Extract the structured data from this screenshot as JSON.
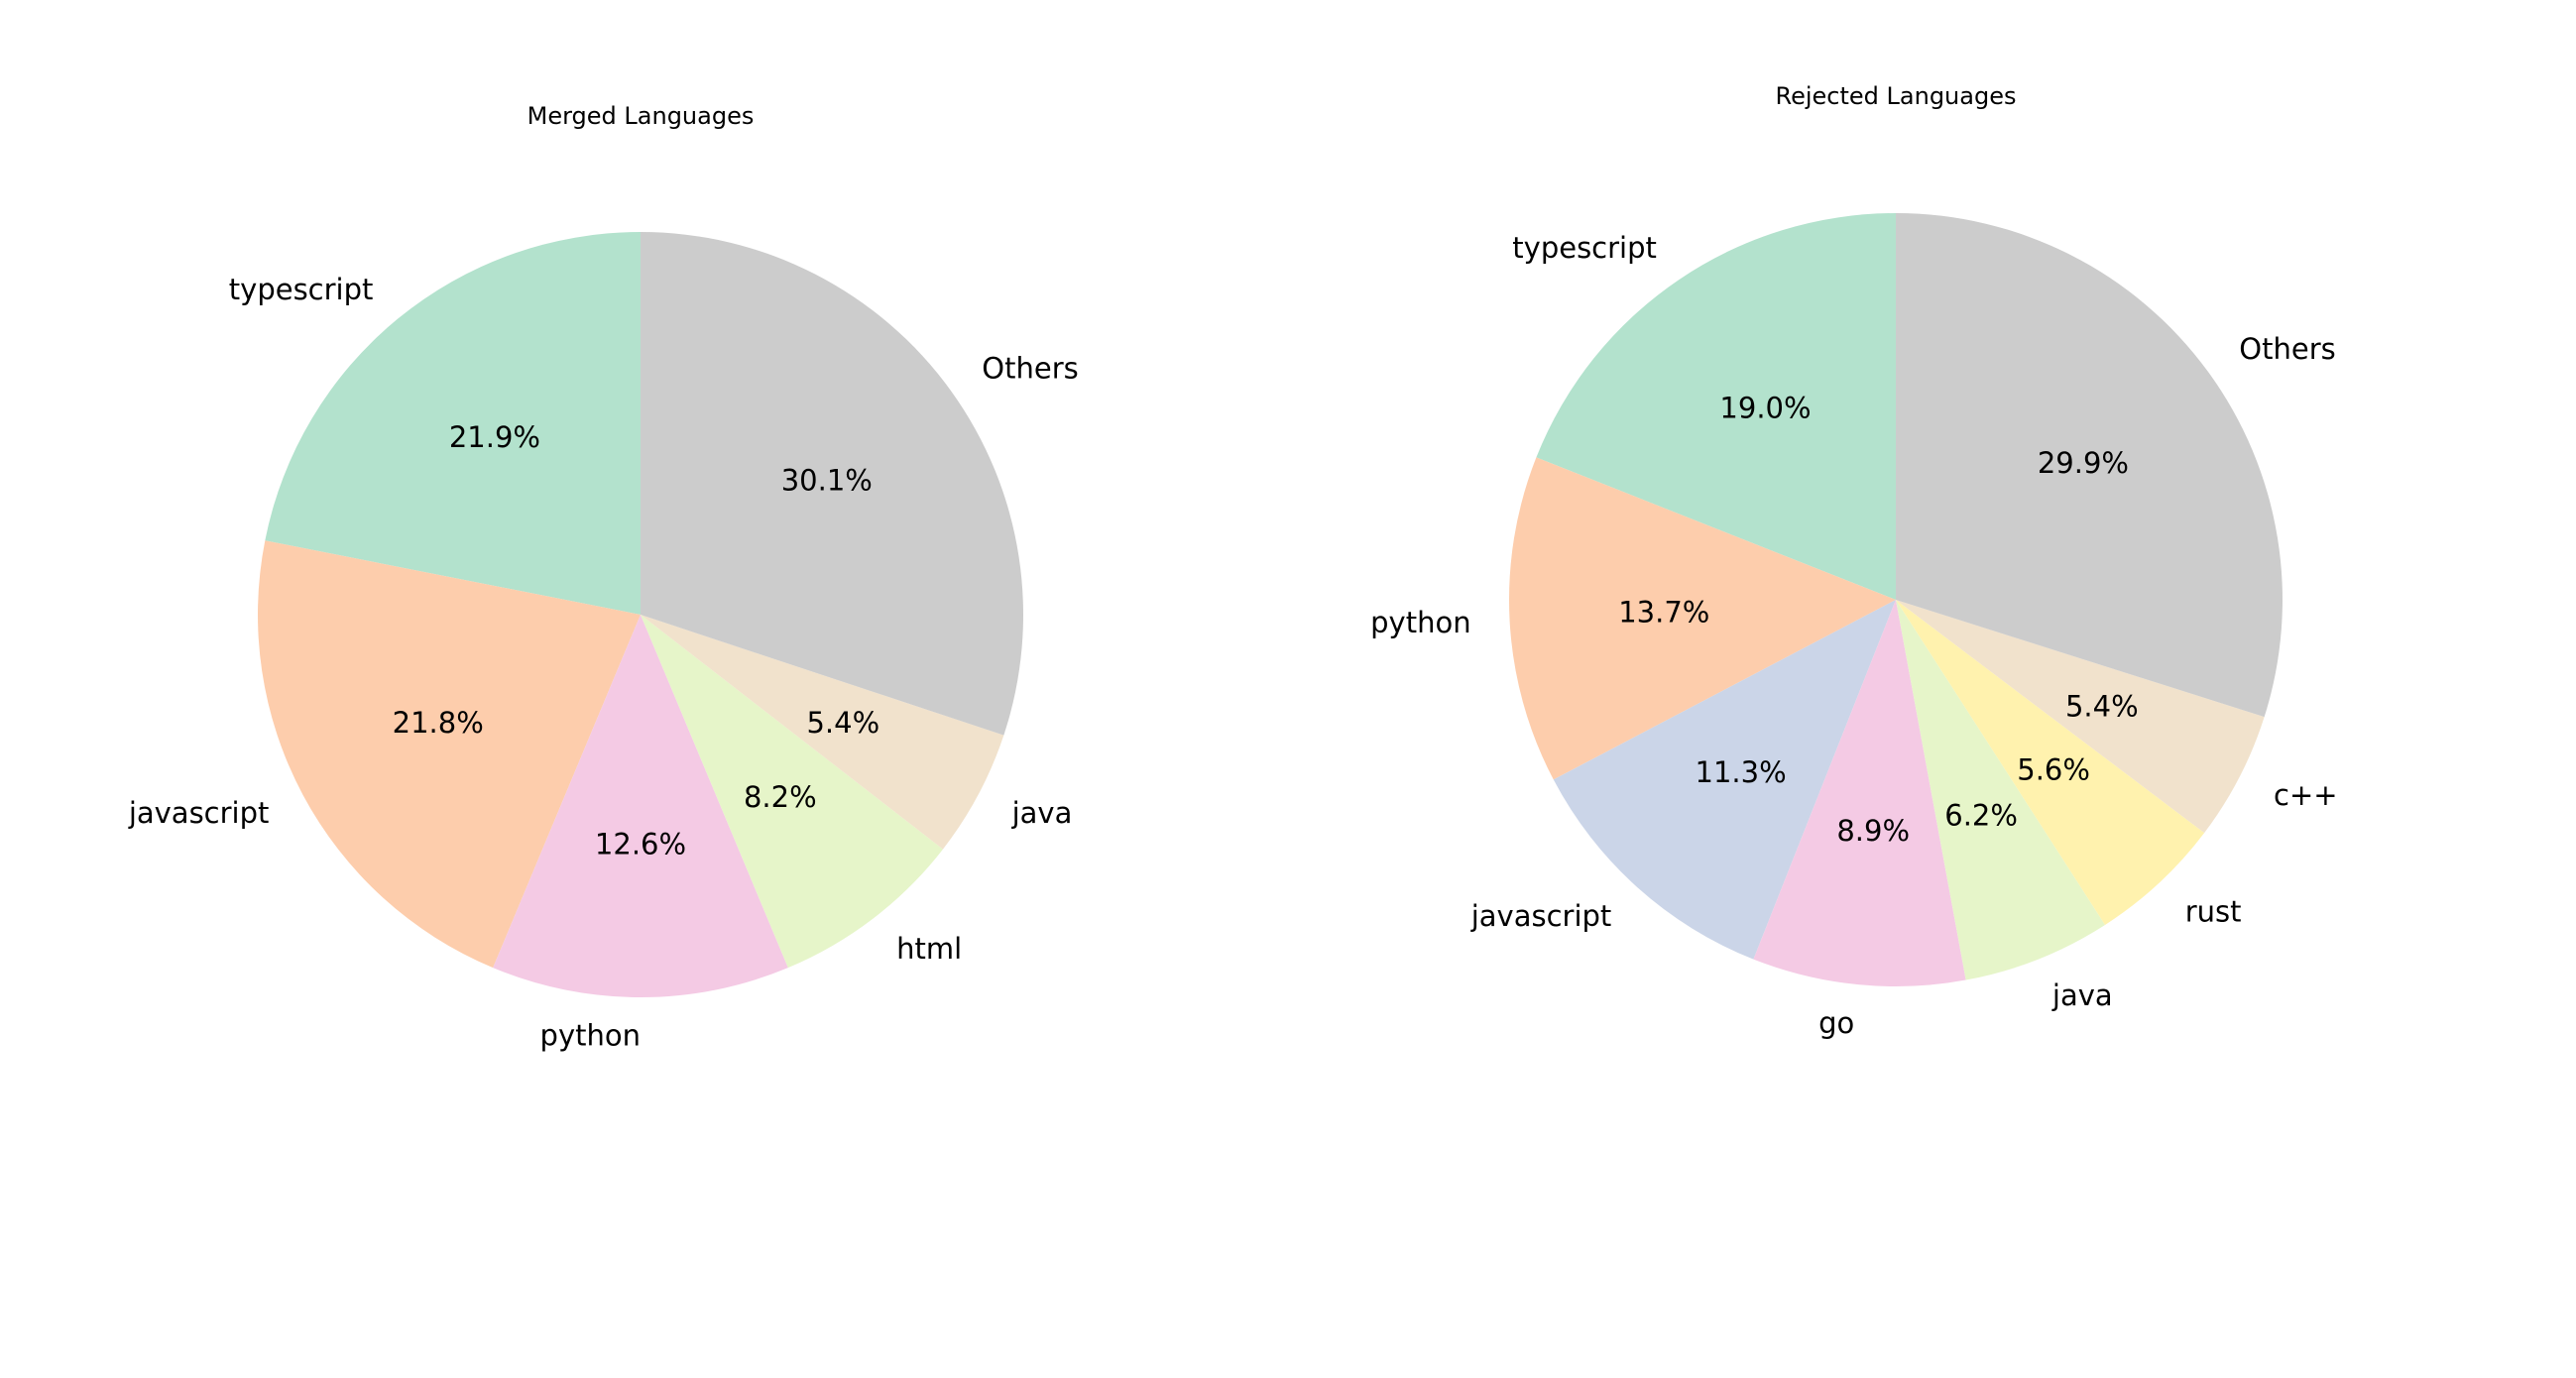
{
  "chart_data": [
    {
      "type": "pie",
      "title": "Merged Languages",
      "start_angle_deg": 90,
      "direction": "counterclockwise",
      "slices": [
        {
          "label": "typescript",
          "value": 21.9,
          "pct_label": "21.9%",
          "color": "#b3e2cd"
        },
        {
          "label": "javascript",
          "value": 21.8,
          "pct_label": "21.8%",
          "color": "#fdcdac"
        },
        {
          "label": "python",
          "value": 12.6,
          "pct_label": "12.6%",
          "color": "#f4cae4"
        },
        {
          "label": "html",
          "value": 8.2,
          "pct_label": "8.2%",
          "color": "#e6f5c9"
        },
        {
          "label": "java",
          "value": 5.4,
          "pct_label": "5.4%",
          "color": "#f1e2cc"
        },
        {
          "label": "Others",
          "value": 30.1,
          "pct_label": "30.1%",
          "color": "#cccccc"
        }
      ]
    },
    {
      "type": "pie",
      "title": "Rejected Languages",
      "start_angle_deg": 90,
      "direction": "counterclockwise",
      "slices": [
        {
          "label": "typescript",
          "value": 19.0,
          "pct_label": "19.0%",
          "color": "#b3e2cd"
        },
        {
          "label": "python",
          "value": 13.7,
          "pct_label": "13.7%",
          "color": "#fdcdac"
        },
        {
          "label": "javascript",
          "value": 11.3,
          "pct_label": "11.3%",
          "color": "#cbd5e8"
        },
        {
          "label": "go",
          "value": 8.9,
          "pct_label": "8.9%",
          "color": "#f4cae4"
        },
        {
          "label": "java",
          "value": 6.2,
          "pct_label": "6.2%",
          "color": "#e6f5c9"
        },
        {
          "label": "rust",
          "value": 5.6,
          "pct_label": "5.6%",
          "color": "#fff2ae"
        },
        {
          "label": "c++",
          "value": 5.4,
          "pct_label": "5.4%",
          "color": "#f1e2cc"
        },
        {
          "label": "Others",
          "value": 29.9,
          "pct_label": "29.9%",
          "color": "#cccccc"
        }
      ]
    }
  ]
}
